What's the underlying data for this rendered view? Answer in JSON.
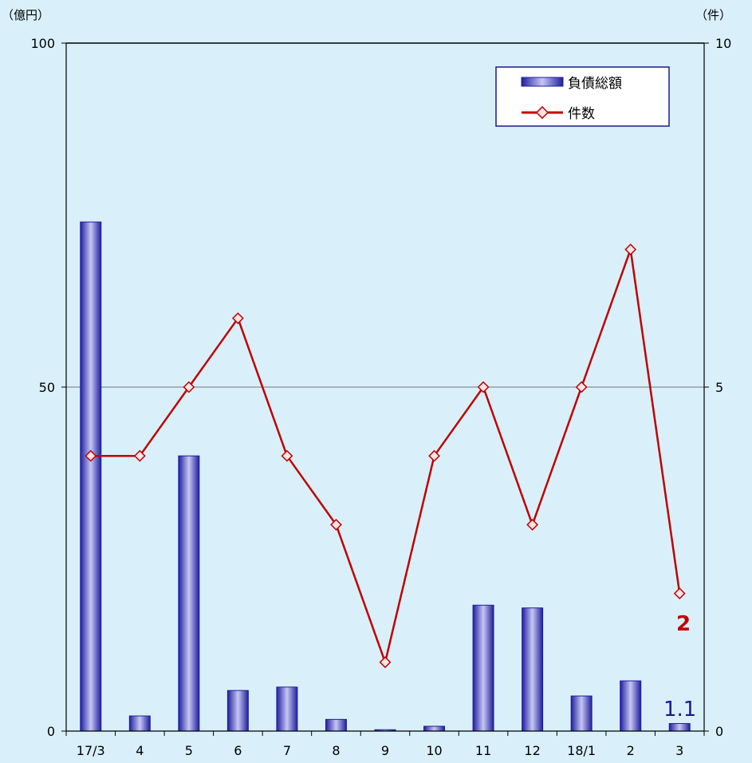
{
  "chart_data": {
    "type": "bar+line",
    "categories": [
      "17/3",
      "4",
      "5",
      "6",
      "7",
      "8",
      "9",
      "10",
      "11",
      "12",
      "18/1",
      "2",
      "3"
    ],
    "series": [
      {
        "name": "負債総額",
        "type": "bar",
        "axis": "left",
        "unit": "（億円）",
        "values": [
          74,
          2.2,
          40,
          5.9,
          6.4,
          1.7,
          0.2,
          0.7,
          18.3,
          17.9,
          5.1,
          7.3,
          1.1
        ],
        "color": "#2b2bb0"
      },
      {
        "name": "件数",
        "type": "line",
        "axis": "right",
        "unit": "（件）",
        "values": [
          4,
          4,
          5,
          6,
          4,
          3,
          1,
          4,
          5,
          3,
          5,
          7,
          2
        ],
        "color": "#c00000"
      }
    ],
    "left_axis": {
      "label": "（億円）",
      "ylim": [
        0,
        100
      ],
      "ticks": [
        0,
        50,
        100
      ]
    },
    "right_axis": {
      "label": "（件）",
      "ylim": [
        0,
        10
      ],
      "ticks": [
        0,
        5,
        10
      ]
    },
    "annotations": {
      "last_count": "2",
      "last_debt": "1.1"
    },
    "grid": "horizontal at 50",
    "legend_position": "top-right"
  }
}
